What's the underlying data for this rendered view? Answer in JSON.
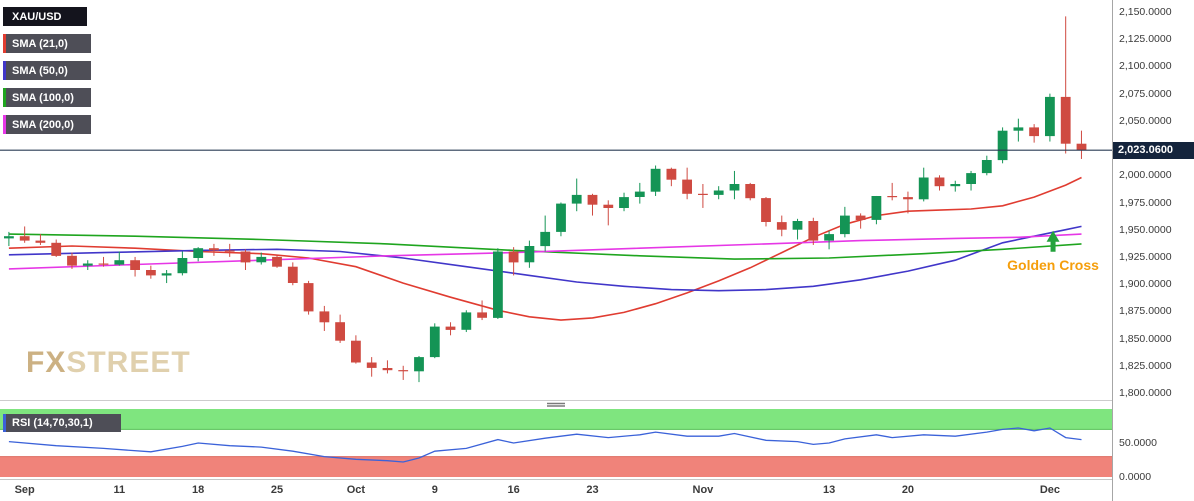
{
  "watermark": {
    "fx": "FX",
    "street": "STREET"
  },
  "annotation": {
    "text": "Golden Cross",
    "color": "#f59e0b",
    "arrow_color": "#23a23c"
  },
  "chart_data": {
    "type": "candlestick",
    "symbol": "XAU/USD",
    "timeframe_labels": "daily",
    "ylim": [
      1800,
      2150
    ],
    "current_price": 2023.06,
    "price_label": "2,023.0600",
    "colors": {
      "up": "#149455",
      "down": "#cf4a41",
      "price_line": "#2a3b55",
      "badge_bg": "#14243c"
    },
    "price_ticks": [
      {
        "value": 2150,
        "label": "2,150.0000"
      },
      {
        "value": 2125,
        "label": "2,125.0000"
      },
      {
        "value": 2100,
        "label": "2,100.0000"
      },
      {
        "value": 2075,
        "label": "2,075.0000"
      },
      {
        "value": 2050,
        "label": "2,050.0000"
      },
      {
        "value": 2000,
        "label": "2,000.0000"
      },
      {
        "value": 1975,
        "label": "1,975.0000"
      },
      {
        "value": 1950,
        "label": "1,950.0000"
      },
      {
        "value": 1925,
        "label": "1,925.0000"
      },
      {
        "value": 1900,
        "label": "1,900.0000"
      },
      {
        "value": 1875,
        "label": "1,875.0000"
      },
      {
        "value": 1850,
        "label": "1,850.0000"
      },
      {
        "value": 1825,
        "label": "1,825.0000"
      },
      {
        "value": 1800,
        "label": "1,800.0000"
      }
    ],
    "x_labels": [
      {
        "label": "Sep",
        "index": 1
      },
      {
        "label": "11",
        "index": 7
      },
      {
        "label": "18",
        "index": 12
      },
      {
        "label": "25",
        "index": 17
      },
      {
        "label": "Oct",
        "index": 22
      },
      {
        "label": "9",
        "index": 27
      },
      {
        "label": "16",
        "index": 32
      },
      {
        "label": "23",
        "index": 37
      },
      {
        "label": "Nov",
        "index": 44
      },
      {
        "label": "13",
        "index": 52
      },
      {
        "label": "20",
        "index": 57
      },
      {
        "label": "Dec",
        "index": 66
      }
    ],
    "candles": [
      [
        1942,
        1948,
        1935,
        1944
      ],
      [
        1944,
        1953,
        1938,
        1940
      ],
      [
        1940,
        1946,
        1936,
        1938
      ],
      [
        1938,
        1941,
        1925,
        1926
      ],
      [
        1926,
        1929,
        1914,
        1917
      ],
      [
        1917,
        1922,
        1913,
        1919
      ],
      [
        1919,
        1925,
        1916,
        1918
      ],
      [
        1918,
        1930,
        1917,
        1922
      ],
      [
        1922,
        1925,
        1907,
        1913
      ],
      [
        1913,
        1917,
        1905,
        1908
      ],
      [
        1908,
        1913,
        1901,
        1910
      ],
      [
        1910,
        1930,
        1908,
        1924
      ],
      [
        1924,
        1934,
        1921,
        1933
      ],
      [
        1933,
        1937,
        1926,
        1931
      ],
      [
        1931,
        1937,
        1925,
        1930
      ],
      [
        1930,
        1932,
        1913,
        1920
      ],
      [
        1920,
        1929,
        1918,
        1925
      ],
      [
        1925,
        1927,
        1915,
        1916
      ],
      [
        1916,
        1920,
        1899,
        1901
      ],
      [
        1901,
        1903,
        1872,
        1875
      ],
      [
        1875,
        1880,
        1857,
        1865
      ],
      [
        1865,
        1872,
        1846,
        1848
      ],
      [
        1848,
        1853,
        1827,
        1828
      ],
      [
        1828,
        1833,
        1815,
        1823
      ],
      [
        1823,
        1830,
        1818,
        1821
      ],
      [
        1821,
        1825,
        1812,
        1820
      ],
      [
        1820,
        1834,
        1810,
        1833
      ],
      [
        1833,
        1864,
        1832,
        1861
      ],
      [
        1861,
        1865,
        1853,
        1858
      ],
      [
        1858,
        1876,
        1856,
        1874
      ],
      [
        1874,
        1885,
        1867,
        1869
      ],
      [
        1869,
        1933,
        1868,
        1930
      ],
      [
        1930,
        1934,
        1908,
        1920
      ],
      [
        1920,
        1940,
        1915,
        1935
      ],
      [
        1935,
        1963,
        1930,
        1948
      ],
      [
        1948,
        1975,
        1944,
        1974
      ],
      [
        1974,
        1997,
        1967,
        1982
      ],
      [
        1982,
        1983,
        1963,
        1973
      ],
      [
        1973,
        1977,
        1954,
        1970
      ],
      [
        1970,
        1984,
        1967,
        1980
      ],
      [
        1980,
        1993,
        1974,
        1985
      ],
      [
        1985,
        2009,
        1981,
        2006
      ],
      [
        2006,
        2007,
        1990,
        1996
      ],
      [
        1996,
        2007,
        1978,
        1983
      ],
      [
        1983,
        1992,
        1970,
        1982
      ],
      [
        1982,
        1990,
        1978,
        1986
      ],
      [
        1986,
        2004,
        1978,
        1992
      ],
      [
        1992,
        1993,
        1977,
        1979
      ],
      [
        1979,
        1980,
        1953,
        1957
      ],
      [
        1957,
        1963,
        1944,
        1950
      ],
      [
        1950,
        1960,
        1941,
        1958
      ],
      [
        1958,
        1961,
        1936,
        1940
      ],
      [
        1940,
        1949,
        1932,
        1946
      ],
      [
        1946,
        1971,
        1943,
        1963
      ],
      [
        1963,
        1965,
        1951,
        1959
      ],
      [
        1959,
        1981,
        1955,
        1981
      ],
      [
        1981,
        1993,
        1977,
        1980
      ],
      [
        1980,
        1985,
        1965,
        1978
      ],
      [
        1978,
        2007,
        1976,
        1998
      ],
      [
        1998,
        2000,
        1986,
        1990
      ],
      [
        1990,
        1995,
        1985,
        1992
      ],
      [
        1992,
        2004,
        1986,
        2002
      ],
      [
        2002,
        2018,
        2000,
        2014
      ],
      [
        2014,
        2044,
        2011,
        2041
      ],
      [
        2041,
        2052,
        2031,
        2044
      ],
      [
        2044,
        2047,
        2030,
        2036
      ],
      [
        2036,
        2075,
        2031,
        2072
      ],
      [
        2072,
        2146,
        2020,
        2029
      ],
      [
        2029,
        2041,
        2015,
        2023
      ]
    ],
    "sma": [
      {
        "name": "SMA (21,0)",
        "color": "#e03c31",
        "points": [
          [
            0,
            1933
          ],
          [
            4,
            1935
          ],
          [
            8,
            1933
          ],
          [
            12,
            1930
          ],
          [
            16,
            1928
          ],
          [
            19,
            1924
          ],
          [
            22,
            1916
          ],
          [
            25,
            1901
          ],
          [
            28,
            1888
          ],
          [
            31,
            1876
          ],
          [
            33,
            1870
          ],
          [
            35,
            1867
          ],
          [
            37,
            1869
          ],
          [
            39,
            1874
          ],
          [
            41,
            1882
          ],
          [
            43,
            1892
          ],
          [
            45,
            1903
          ],
          [
            47,
            1915
          ],
          [
            49,
            1929
          ],
          [
            51,
            1943
          ],
          [
            53,
            1955
          ],
          [
            55,
            1963
          ],
          [
            57,
            1967
          ],
          [
            59,
            1968
          ],
          [
            61,
            1969
          ],
          [
            63,
            1972
          ],
          [
            65,
            1980
          ],
          [
            67,
            1991
          ],
          [
            68,
            1998
          ]
        ]
      },
      {
        "name": "SMA (50,0)",
        "color": "#4136c9",
        "points": [
          [
            0,
            1927
          ],
          [
            6,
            1929
          ],
          [
            12,
            1931
          ],
          [
            17,
            1932
          ],
          [
            21,
            1930
          ],
          [
            25,
            1924
          ],
          [
            29,
            1916
          ],
          [
            33,
            1908
          ],
          [
            36,
            1902
          ],
          [
            39,
            1898
          ],
          [
            42,
            1895
          ],
          [
            45,
            1894
          ],
          [
            48,
            1895
          ],
          [
            51,
            1898
          ],
          [
            54,
            1904
          ],
          [
            57,
            1912
          ],
          [
            60,
            1922
          ],
          [
            63,
            1938
          ],
          [
            65,
            1944
          ],
          [
            67,
            1950
          ],
          [
            68,
            1953
          ]
        ]
      },
      {
        "name": "SMA (100,0)",
        "color": "#1fa51f",
        "points": [
          [
            0,
            1946
          ],
          [
            8,
            1944
          ],
          [
            16,
            1941
          ],
          [
            24,
            1937
          ],
          [
            32,
            1931
          ],
          [
            40,
            1926
          ],
          [
            46,
            1923
          ],
          [
            52,
            1924
          ],
          [
            58,
            1928
          ],
          [
            63,
            1932
          ],
          [
            68,
            1937
          ]
        ]
      },
      {
        "name": "SMA (200,0)",
        "color": "#e637e6",
        "points": [
          [
            0,
            1914
          ],
          [
            8,
            1918
          ],
          [
            16,
            1922
          ],
          [
            24,
            1926
          ],
          [
            32,
            1929
          ],
          [
            40,
            1933
          ],
          [
            48,
            1937
          ],
          [
            54,
            1940
          ],
          [
            60,
            1942
          ],
          [
            64,
            1943
          ],
          [
            68,
            1946
          ]
        ]
      }
    ],
    "annotation": {
      "index": 66.2,
      "price": 1949
    },
    "rsi": {
      "name": "RSI (14,70,30,1)",
      "overbought": 70,
      "oversold": 30,
      "line_color": "#3b62d9",
      "band_green": "#7fe57f",
      "band_red": "#f0837a",
      "ticks": [
        {
          "value": 50,
          "label": "50.0000"
        },
        {
          "value": 0,
          "label": "0.0000"
        }
      ],
      "points": [
        [
          0,
          52
        ],
        [
          3,
          46
        ],
        [
          6,
          42
        ],
        [
          9,
          37
        ],
        [
          11,
          45
        ],
        [
          12,
          50
        ],
        [
          14,
          46
        ],
        [
          16,
          44
        ],
        [
          18,
          38
        ],
        [
          20,
          30
        ],
        [
          22,
          26
        ],
        [
          24,
          24
        ],
        [
          25,
          22
        ],
        [
          26,
          28
        ],
        [
          27,
          38
        ],
        [
          29,
          42
        ],
        [
          31,
          55
        ],
        [
          32,
          50
        ],
        [
          34,
          57
        ],
        [
          36,
          63
        ],
        [
          38,
          58
        ],
        [
          40,
          62
        ],
        [
          41,
          66
        ],
        [
          43,
          60
        ],
        [
          45,
          60
        ],
        [
          46,
          64
        ],
        [
          48,
          54
        ],
        [
          50,
          52
        ],
        [
          51,
          48
        ],
        [
          52,
          50
        ],
        [
          53,
          56
        ],
        [
          55,
          62
        ],
        [
          56,
          58
        ],
        [
          58,
          62
        ],
        [
          60,
          60
        ],
        [
          62,
          66
        ],
        [
          63,
          70
        ],
        [
          64,
          72
        ],
        [
          65,
          68
        ],
        [
          66,
          72
        ],
        [
          67,
          58
        ],
        [
          68,
          55
        ]
      ]
    }
  }
}
